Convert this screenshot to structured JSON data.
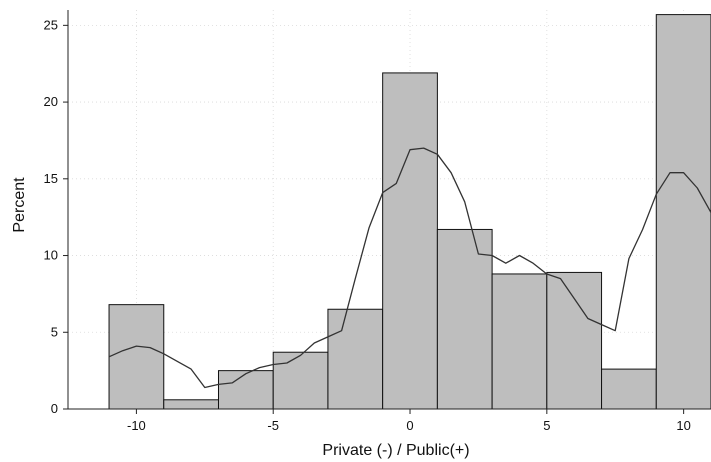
{
  "chart_data": {
    "type": "bar",
    "subtype": "histogram-with-density",
    "xlabel": "Private (-) / Public(+)",
    "ylabel": "Percent",
    "xlim": [
      -12.5,
      11
    ],
    "ylim": [
      0,
      26
    ],
    "x_ticks": [
      -10,
      -5,
      0,
      5,
      10
    ],
    "y_ticks": [
      0,
      5,
      10,
      15,
      20,
      25
    ],
    "grid": true,
    "bar_color": "#bebebe",
    "line_color": "#333333",
    "bins": [
      {
        "start": -11,
        "end": -9,
        "value": 6.8
      },
      {
        "start": -9,
        "end": -7,
        "value": 0.6
      },
      {
        "start": -7,
        "end": -5,
        "value": 2.5
      },
      {
        "start": -5,
        "end": -3,
        "value": 3.7
      },
      {
        "start": -3,
        "end": -1,
        "value": 6.5
      },
      {
        "start": -1,
        "end": 1,
        "value": 21.9
      },
      {
        "start": 1,
        "end": 3,
        "value": 11.7
      },
      {
        "start": 3,
        "end": 5,
        "value": 8.8
      },
      {
        "start": 5,
        "end": 7,
        "value": 8.9
      },
      {
        "start": 7,
        "end": 9,
        "value": 2.6
      },
      {
        "start": 9,
        "end": 11,
        "value": 25.7
      }
    ],
    "density": {
      "x": [
        -11,
        -10.5,
        -10,
        -9.5,
        -9,
        -8.5,
        -8,
        -7.5,
        -7,
        -6.5,
        -6,
        -5.5,
        -5,
        -4.5,
        -4,
        -3.5,
        -3,
        -2.5,
        -2,
        -1.5,
        -1,
        -0.5,
        0,
        0.5,
        1,
        1.5,
        2,
        2.5,
        3,
        3.5,
        4,
        4.5,
        5,
        5.5,
        6,
        6.5,
        7,
        7.5,
        8,
        8.5,
        9,
        9.5,
        10,
        10.5,
        11
      ],
      "y": [
        3.4,
        3.8,
        4.1,
        4.0,
        3.6,
        3.1,
        2.6,
        1.4,
        1.6,
        1.7,
        2.3,
        2.7,
        2.9,
        3.0,
        3.5,
        4.3,
        4.7,
        5.1,
        8.5,
        11.8,
        14.1,
        14.7,
        16.9,
        17.0,
        16.6,
        15.4,
        13.5,
        10.1,
        10.0,
        9.5,
        10.0,
        9.5,
        8.8,
        8.5,
        7.2,
        5.9,
        5.5,
        5.1,
        9.8,
        11.7,
        14.0,
        15.4,
        15.4,
        14.4,
        12.8
      ]
    }
  }
}
